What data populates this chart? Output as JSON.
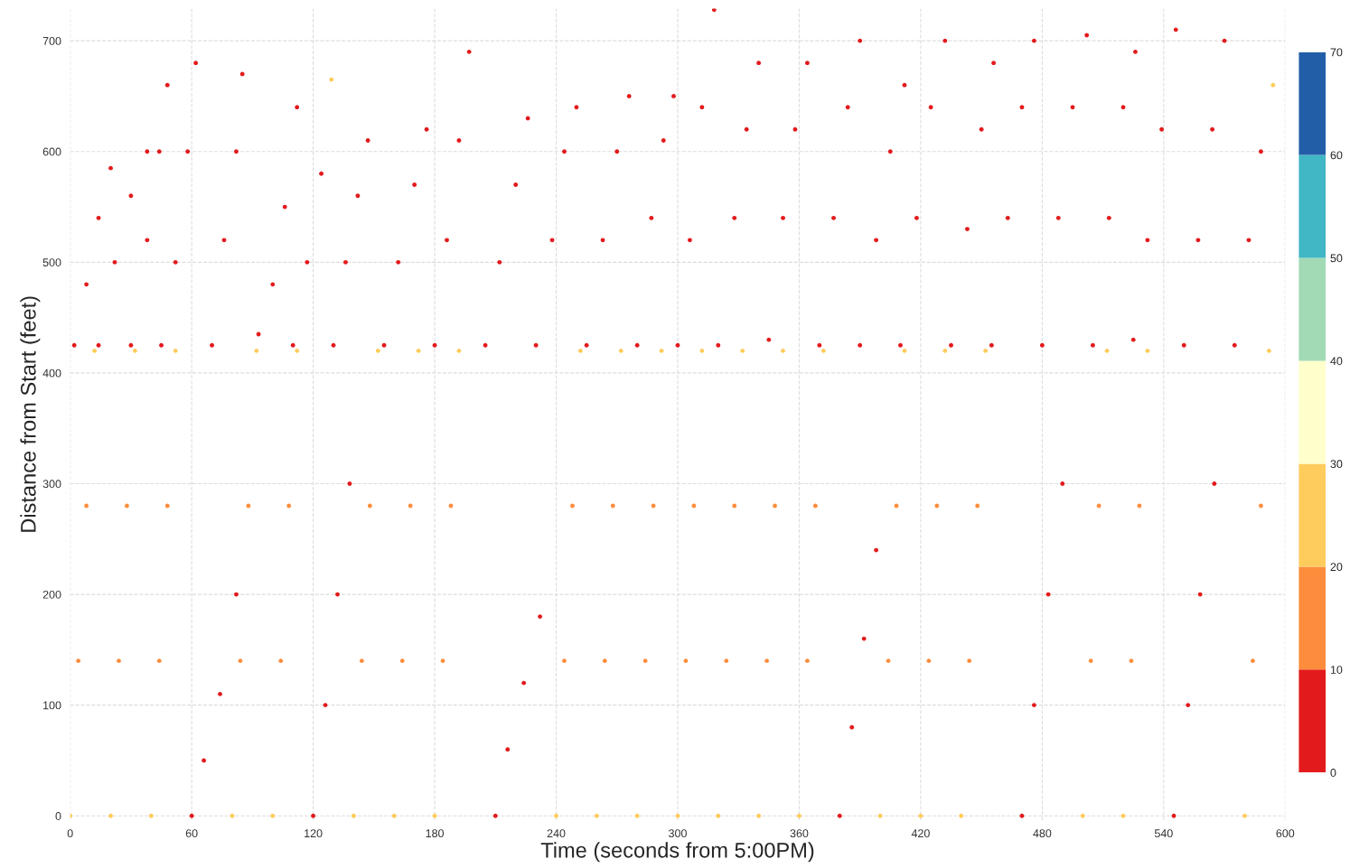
{
  "chart_data": {
    "type": "scatter",
    "xlabel": "Time (seconds from 5:00PM)",
    "ylabel": "Distance from Start (feet)",
    "xlim": [
      0,
      600
    ],
    "xticks": [
      0,
      60,
      120,
      180,
      240,
      300,
      360,
      420,
      480,
      540,
      600
    ],
    "ylim": [
      -4,
      729
    ],
    "yticks": [
      0,
      100,
      200,
      300,
      400,
      500,
      600,
      700
    ],
    "grid": true,
    "clim": [
      0,
      70
    ],
    "cticks": [
      0,
      10,
      20,
      30,
      40,
      50,
      60,
      70
    ],
    "marker": "circle",
    "series": [
      {
        "x": [
          2,
          8,
          14,
          20
        ],
        "values": [
          425,
          480,
          540,
          585
        ],
        "color": "#e31a1c"
      },
      {
        "x": [
          14,
          22,
          30,
          38
        ],
        "values": [
          425,
          500,
          560,
          600
        ],
        "color": "#e31a1c"
      },
      {
        "x": [
          30,
          38,
          44,
          48
        ],
        "values": [
          425,
          520,
          600,
          660
        ],
        "color": "#e31a1c"
      },
      {
        "x": [
          45,
          52,
          58,
          62
        ],
        "values": [
          425,
          500,
          600,
          680
        ],
        "color": "#e31a1c"
      },
      {
        "x": [
          70,
          76,
          82,
          85
        ],
        "values": [
          425,
          520,
          600,
          670
        ],
        "color": "#e31a1c"
      },
      {
        "x": [
          93,
          100,
          106,
          112
        ],
        "values": [
          435,
          480,
          550,
          640
        ],
        "color": "#e31a1c"
      },
      {
        "x": [
          110,
          117,
          124,
          129
        ],
        "values": [
          425,
          500,
          580,
          665
        ],
        "colors": [
          "#e31a1c",
          "#e31a1c",
          "#e31a1c",
          "#fecc5c"
        ]
      },
      {
        "x": [
          130,
          136,
          142,
          147
        ],
        "values": [
          425,
          500,
          560,
          610
        ],
        "color": "#e31a1c"
      },
      {
        "x": [
          155,
          162,
          170,
          176
        ],
        "values": [
          425,
          500,
          570,
          620
        ],
        "color": "#e31a1c"
      },
      {
        "x": [
          180,
          186,
          192,
          197
        ],
        "values": [
          425,
          520,
          610,
          690
        ],
        "color": "#e31a1c"
      },
      {
        "x": [
          205,
          212,
          220,
          226
        ],
        "values": [
          425,
          500,
          570,
          630
        ],
        "color": "#e31a1c"
      },
      {
        "x": [
          230,
          238,
          244,
          250
        ],
        "values": [
          425,
          520,
          600,
          640
        ],
        "color": "#e31a1c"
      },
      {
        "x": [
          255,
          263,
          270,
          276
        ],
        "values": [
          425,
          520,
          600,
          650
        ],
        "color": "#e31a1c"
      },
      {
        "x": [
          280,
          287,
          293,
          298
        ],
        "values": [
          425,
          540,
          610,
          650
        ],
        "color": "#e31a1c"
      },
      {
        "x": [
          300,
          306,
          312,
          318
        ],
        "values": [
          425,
          520,
          640,
          728
        ],
        "color": "#e31a1c"
      },
      {
        "x": [
          320,
          328,
          334,
          340
        ],
        "values": [
          425,
          540,
          620,
          680
        ],
        "color": "#e31a1c"
      },
      {
        "x": [
          345,
          352,
          358,
          364
        ],
        "values": [
          430,
          540,
          620,
          680
        ],
        "color": "#e31a1c"
      },
      {
        "x": [
          370,
          377,
          384,
          390
        ],
        "values": [
          425,
          540,
          640,
          700
        ],
        "color": "#e31a1c"
      },
      {
        "x": [
          390,
          398,
          405,
          412
        ],
        "values": [
          425,
          520,
          600,
          660
        ],
        "color": "#e31a1c"
      },
      {
        "x": [
          410,
          418,
          425,
          432
        ],
        "values": [
          425,
          540,
          640,
          700
        ],
        "color": "#e31a1c"
      },
      {
        "x": [
          435,
          443,
          450,
          456
        ],
        "values": [
          425,
          530,
          620,
          680
        ],
        "color": "#e31a1c"
      },
      {
        "x": [
          455,
          463,
          470,
          476
        ],
        "values": [
          425,
          540,
          640,
          700
        ],
        "color": "#e31a1c"
      },
      {
        "x": [
          480,
          488,
          495,
          502
        ],
        "values": [
          425,
          540,
          640,
          705
        ],
        "color": "#e31a1c"
      },
      {
        "x": [
          505,
          513,
          520,
          526
        ],
        "values": [
          425,
          540,
          640,
          690
        ],
        "color": "#e31a1c"
      },
      {
        "x": [
          525,
          532,
          539,
          546
        ],
        "values": [
          430,
          520,
          620,
          710
        ],
        "color": "#e31a1c"
      },
      {
        "x": [
          550,
          557,
          564,
          570
        ],
        "values": [
          425,
          520,
          620,
          700
        ],
        "color": "#e31a1c"
      },
      {
        "x": [
          575,
          582,
          588,
          594
        ],
        "values": [
          425,
          520,
          600,
          660
        ],
        "colors": [
          "#e31a1c",
          "#e31a1c",
          "#e31a1c",
          "#fecc5c"
        ]
      },
      {
        "x": [
          0,
          4,
          8,
          12
        ],
        "values": [
          0,
          140,
          280,
          420
        ],
        "colors": [
          "#fecc5c",
          "#fd8d3c",
          "#fd8d3c",
          "#fecc5c"
        ]
      },
      {
        "x": [
          20,
          24,
          28,
          32
        ],
        "values": [
          0,
          140,
          280,
          420
        ],
        "colors": [
          "#fecc5c",
          "#fd8d3c",
          "#fd8d3c",
          "#fecc5c"
        ]
      },
      {
        "x": [
          40,
          44,
          48,
          52
        ],
        "values": [
          0,
          140,
          280,
          420
        ],
        "colors": [
          "#fecc5c",
          "#fd8d3c",
          "#fd8d3c",
          "#fecc5c"
        ]
      },
      {
        "x": [
          80,
          84,
          88,
          92
        ],
        "values": [
          0,
          140,
          280,
          420
        ],
        "colors": [
          "#fecc5c",
          "#fd8d3c",
          "#fd8d3c",
          "#fecc5c"
        ]
      },
      {
        "x": [
          100,
          104,
          108,
          112
        ],
        "values": [
          0,
          140,
          280,
          420
        ],
        "colors": [
          "#fecc5c",
          "#fd8d3c",
          "#fd8d3c",
          "#fecc5c"
        ]
      },
      {
        "x": [
          140,
          144,
          148,
          152
        ],
        "values": [
          0,
          140,
          280,
          420
        ],
        "colors": [
          "#fecc5c",
          "#fd8d3c",
          "#fd8d3c",
          "#fecc5c"
        ]
      },
      {
        "x": [
          160,
          164,
          168,
          172
        ],
        "values": [
          0,
          140,
          280,
          420
        ],
        "colors": [
          "#fecc5c",
          "#fd8d3c",
          "#fd8d3c",
          "#fecc5c"
        ]
      },
      {
        "x": [
          180,
          184,
          188,
          192
        ],
        "values": [
          0,
          140,
          280,
          420
        ],
        "colors": [
          "#fecc5c",
          "#fd8d3c",
          "#fd8d3c",
          "#fecc5c"
        ]
      },
      {
        "x": [
          240,
          244,
          248,
          252
        ],
        "values": [
          0,
          140,
          280,
          420
        ],
        "colors": [
          "#fecc5c",
          "#fd8d3c",
          "#fd8d3c",
          "#fecc5c"
        ]
      },
      {
        "x": [
          260,
          264,
          268,
          272
        ],
        "values": [
          0,
          140,
          280,
          420
        ],
        "colors": [
          "#fecc5c",
          "#fd8d3c",
          "#fd8d3c",
          "#fecc5c"
        ]
      },
      {
        "x": [
          280,
          284,
          288,
          292
        ],
        "values": [
          0,
          140,
          280,
          420
        ],
        "colors": [
          "#fecc5c",
          "#fd8d3c",
          "#fd8d3c",
          "#fecc5c"
        ]
      },
      {
        "x": [
          300,
          304,
          308,
          312
        ],
        "values": [
          0,
          140,
          280,
          420
        ],
        "colors": [
          "#fecc5c",
          "#fd8d3c",
          "#fd8d3c",
          "#fecc5c"
        ]
      },
      {
        "x": [
          320,
          324,
          328,
          332
        ],
        "values": [
          0,
          140,
          280,
          420
        ],
        "colors": [
          "#fecc5c",
          "#fd8d3c",
          "#fd8d3c",
          "#fecc5c"
        ]
      },
      {
        "x": [
          340,
          344,
          348,
          352
        ],
        "values": [
          0,
          140,
          280,
          420
        ],
        "colors": [
          "#fecc5c",
          "#fd8d3c",
          "#fd8d3c",
          "#fecc5c"
        ]
      },
      {
        "x": [
          360,
          364,
          368,
          372
        ],
        "values": [
          0,
          140,
          280,
          420
        ],
        "colors": [
          "#fecc5c",
          "#fd8d3c",
          "#fd8d3c",
          "#fecc5c"
        ]
      },
      {
        "x": [
          400,
          404,
          408,
          412
        ],
        "values": [
          0,
          140,
          280,
          420
        ],
        "colors": [
          "#fecc5c",
          "#fd8d3c",
          "#fd8d3c",
          "#fecc5c"
        ]
      },
      {
        "x": [
          420,
          424,
          428,
          432
        ],
        "values": [
          0,
          140,
          280,
          420
        ],
        "colors": [
          "#fecc5c",
          "#fd8d3c",
          "#fd8d3c",
          "#fecc5c"
        ]
      },
      {
        "x": [
          440,
          444,
          448,
          452
        ],
        "values": [
          0,
          140,
          280,
          420
        ],
        "colors": [
          "#fecc5c",
          "#fd8d3c",
          "#fd8d3c",
          "#fecc5c"
        ]
      },
      {
        "x": [
          500,
          504,
          508,
          512
        ],
        "values": [
          0,
          140,
          280,
          420
        ],
        "colors": [
          "#fecc5c",
          "#fd8d3c",
          "#fd8d3c",
          "#fecc5c"
        ]
      },
      {
        "x": [
          520,
          524,
          528,
          532
        ],
        "values": [
          0,
          140,
          280,
          420
        ],
        "colors": [
          "#fecc5c",
          "#fd8d3c",
          "#fd8d3c",
          "#fecc5c"
        ]
      },
      {
        "x": [
          580,
          584,
          588,
          592
        ],
        "values": [
          0,
          140,
          280,
          420
        ],
        "colors": [
          "#fecc5c",
          "#fd8d3c",
          "#fd8d3c",
          "#fecc5c"
        ]
      },
      {
        "x": [
          60,
          66,
          74,
          82
        ],
        "values": [
          0,
          50,
          110,
          200
        ],
        "color": "#e31a1c"
      },
      {
        "x": [
          120,
          126,
          132,
          138
        ],
        "values": [
          0,
          100,
          200,
          300
        ],
        "color": "#e31a1c"
      },
      {
        "x": [
          210,
          216,
          224,
          232
        ],
        "values": [
          0,
          60,
          120,
          180
        ],
        "color": "#e31a1c"
      },
      {
        "x": [
          380,
          386,
          392,
          398
        ],
        "values": [
          0,
          80,
          160,
          240
        ],
        "color": "#e31a1c"
      },
      {
        "x": [
          470,
          476,
          483,
          490
        ],
        "values": [
          0,
          100,
          200,
          300
        ],
        "color": "#e31a1c"
      },
      {
        "x": [
          545,
          552,
          558,
          565
        ],
        "values": [
          0,
          100,
          200,
          300
        ],
        "color": "#e31a1c"
      }
    ]
  }
}
